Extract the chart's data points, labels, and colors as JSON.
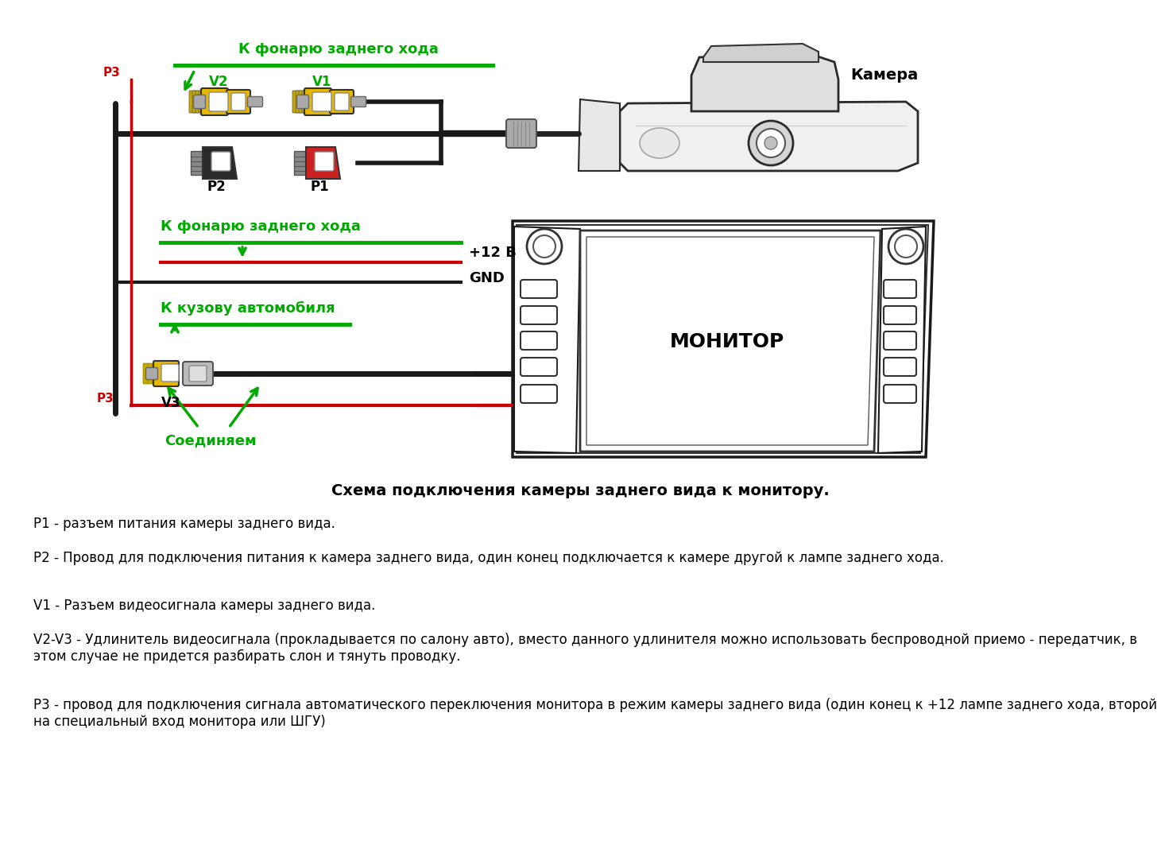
{
  "bg_color": "#ffffff",
  "title_diagram": "Схема подключения камеры заднего вида к монитору.",
  "label_camera": "Камера",
  "label_monitor": "МОНИТОР",
  "label_v1": "V1",
  "label_v2": "V2",
  "label_v3": "V3",
  "label_p1": "P1",
  "label_p2": "P2",
  "label_p3": "P3",
  "label_12v": "+12 В",
  "label_gnd": "GND",
  "label_fonare1": "К фонарю заднего хода",
  "label_fonare2": "К фонарю заднего хода",
  "label_kuzov": "К кузову автомобиля",
  "label_soedinyaem": "Соединяем",
  "text_p1": "P1 - разъем питания камеры заднего вида.",
  "text_p2": "P2 - Провод для подключения питания к камера заднего вида, один конец подключается к камере другой к лампе заднего хода.",
  "text_v1": "V1 - Разъем видеосигнала камеры заднего вида.",
  "text_v2v3": "V2-V3 - Удлинитель видеосигнала (прокладывается по салону авто), вместо данного удлинителя можно использовать беспроводной приемо - передатчик, в\nэтом случае не придется разбирать слон и тянуть проводку.",
  "text_p3": "Р3 - провод для подключения сигнала автоматического переключения монитора в режим камеры заднего вида (один конец к +12 лампе заднего хода, второй\nна специальный вход монитора или ШГУ)",
  "green": "#00aa00",
  "red": "#cc0000",
  "yellow": "#e8b800",
  "black_wire": "#1a1a1a",
  "dark_conn": "#333333"
}
